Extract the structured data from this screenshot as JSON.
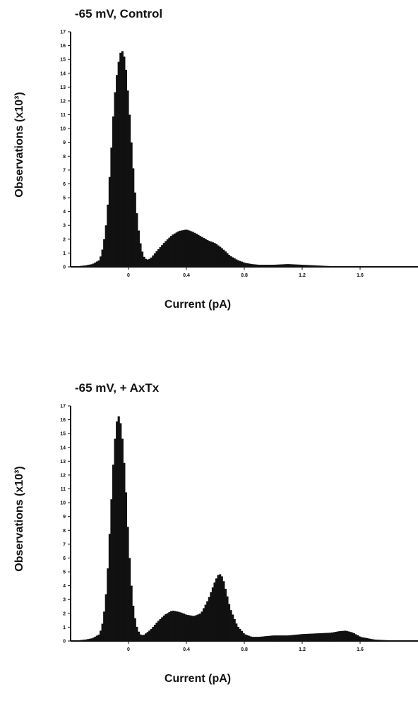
{
  "chart_data": [
    {
      "type": "bar",
      "title": "-65 mV, Control",
      "xlabel": "Current (pA)",
      "ylabel": "Observations (x10³)",
      "xlim": [
        -0.4,
        2.0
      ],
      "ylim": [
        0,
        17
      ],
      "x_ticks": [
        "0",
        "0.4",
        "0.8",
        "1.2",
        "1.6"
      ],
      "y_ticks": [
        "0",
        "1",
        "2",
        "3",
        "4",
        "5",
        "6",
        "7",
        "8",
        "9",
        "10",
        "11",
        "12",
        "13",
        "14",
        "15",
        "16",
        "17"
      ],
      "grid": false,
      "x": [
        -0.4,
        -0.35,
        -0.3,
        -0.25,
        -0.2,
        -0.175,
        -0.15,
        -0.125,
        -0.1,
        -0.075,
        -0.05,
        -0.025,
        0.0,
        0.025,
        0.05,
        0.075,
        0.1,
        0.125,
        0.15,
        0.2,
        0.25,
        0.3,
        0.35,
        0.4,
        0.45,
        0.5,
        0.55,
        0.6,
        0.65,
        0.7,
        0.75,
        0.8,
        0.85,
        0.9,
        1.0,
        1.1,
        1.2,
        1.3,
        1.4,
        1.6,
        1.8,
        2.0
      ],
      "values": [
        0,
        0.05,
        0.1,
        0.2,
        0.5,
        1.5,
        3.5,
        7.5,
        12.0,
        14.5,
        15.8,
        15.0,
        12.0,
        8.0,
        4.5,
        2.0,
        0.8,
        0.5,
        0.6,
        1.2,
        1.8,
        2.3,
        2.6,
        2.7,
        2.5,
        2.2,
        1.9,
        1.7,
        1.3,
        0.8,
        0.5,
        0.3,
        0.2,
        0.15,
        0.15,
        0.2,
        0.15,
        0.1,
        0.05,
        0,
        0,
        0
      ]
    },
    {
      "type": "bar",
      "title": "-65 mV, + AxTx",
      "xlabel": "Current (pA)",
      "ylabel": "Observations (x10³)",
      "xlim": [
        -0.4,
        2.0
      ],
      "ylim": [
        0,
        17
      ],
      "x_ticks": [
        "0",
        "0.4",
        "0.8",
        "1.2",
        "1.6"
      ],
      "y_ticks": [
        "0",
        "1",
        "2",
        "3",
        "4",
        "5",
        "6",
        "7",
        "8",
        "9",
        "10",
        "11",
        "12",
        "13",
        "14",
        "15",
        "16",
        "17"
      ],
      "grid": false,
      "x": [
        -0.4,
        -0.35,
        -0.3,
        -0.25,
        -0.2,
        -0.175,
        -0.15,
        -0.125,
        -0.1,
        -0.075,
        -0.05,
        -0.025,
        0.0,
        0.025,
        0.05,
        0.075,
        0.1,
        0.15,
        0.2,
        0.25,
        0.3,
        0.35,
        0.4,
        0.45,
        0.5,
        0.55,
        0.6,
        0.625,
        0.65,
        0.675,
        0.7,
        0.75,
        0.8,
        0.85,
        0.9,
        1.0,
        1.1,
        1.2,
        1.3,
        1.4,
        1.45,
        1.5,
        1.55,
        1.6,
        1.7,
        1.8,
        2.0
      ],
      "values": [
        0,
        0.05,
        0.1,
        0.2,
        0.5,
        1.5,
        4.0,
        9.0,
        14.0,
        16.5,
        15.5,
        12.0,
        7.0,
        3.0,
        1.2,
        0.5,
        0.4,
        0.8,
        1.4,
        1.9,
        2.2,
        2.1,
        1.9,
        1.8,
        2.0,
        3.0,
        4.4,
        4.9,
        4.6,
        3.5,
        2.4,
        1.1,
        0.5,
        0.3,
        0.3,
        0.4,
        0.4,
        0.5,
        0.55,
        0.6,
        0.7,
        0.75,
        0.6,
        0.3,
        0.1,
        0.05,
        0
      ]
    }
  ]
}
